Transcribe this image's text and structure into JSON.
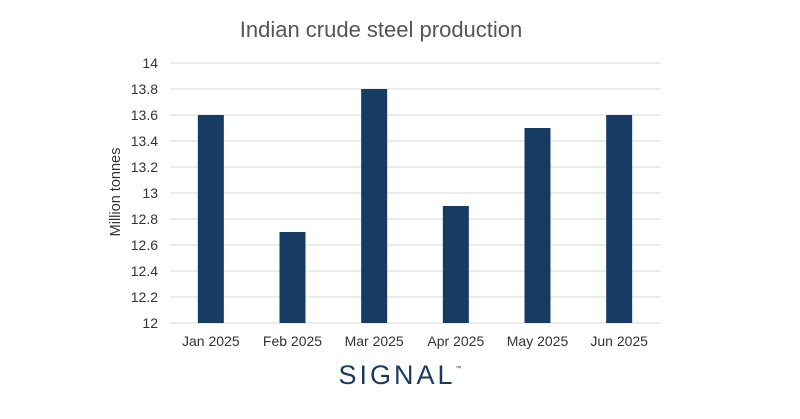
{
  "chart_data": {
    "type": "bar",
    "title": "Indian crude steel production",
    "ylabel": "Million tonnes",
    "xlabel": "",
    "categories": [
      "Jan 2025",
      "Feb 2025",
      "Mar 2025",
      "Apr 2025",
      "May 2025",
      "Jun 2025"
    ],
    "values": [
      13.6,
      12.7,
      13.8,
      12.9,
      13.5,
      13.6
    ],
    "ylim": [
      12,
      14
    ],
    "yticks": [
      "12",
      "12.2",
      "12.4",
      "12.6",
      "12.8",
      "13",
      "13.2",
      "13.4",
      "13.6",
      "13.8",
      "14"
    ],
    "grid": true,
    "legend": "none",
    "bar_color": "#173c64",
    "grid_color": "#d9d9d9"
  },
  "branding": {
    "logo_text": "SIGNAL",
    "trademark": "™"
  }
}
